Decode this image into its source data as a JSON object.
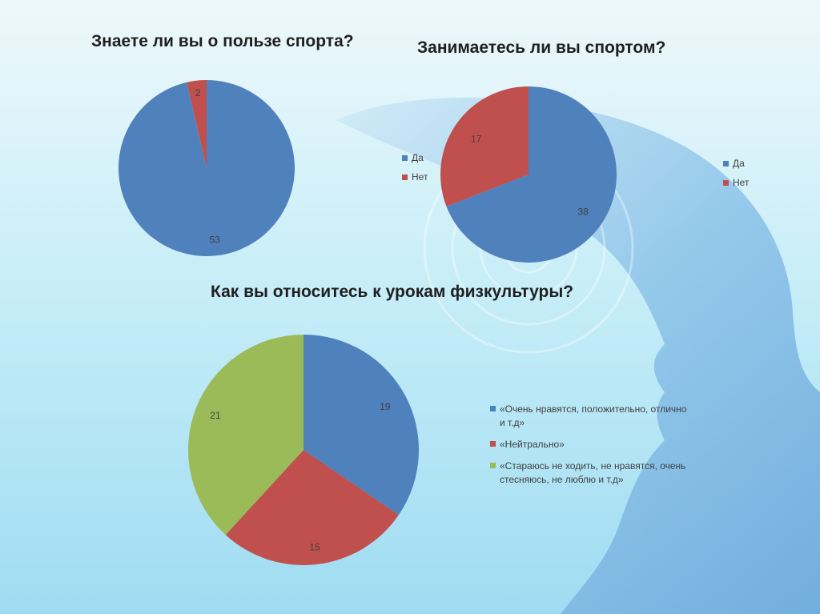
{
  "colors": {
    "blue": "#4f81bd",
    "red": "#c0504d",
    "green": "#9bbb59"
  },
  "chart_data": [
    {
      "type": "pie",
      "title": "Знаете ли вы о пользе спорта?",
      "categories": [
        "Да",
        "Нет"
      ],
      "values": [
        53,
        2
      ],
      "legend": "none"
    },
    {
      "type": "pie",
      "title": "Занимаетесь ли вы спортом?",
      "categories": [
        "Да",
        "Нет"
      ],
      "values": [
        38,
        17
      ],
      "legend": "right"
    },
    {
      "type": "pie",
      "title": "Как вы относитесь к урокам физкультуры?",
      "categories": [
        "«Очень нравятся, положительно, отлично и т.д»",
        "«Нейтрально»",
        "«Стараюсь не ходить, не нравятся, очень стесняюсь, не люблю и т.д»"
      ],
      "values": [
        19,
        15,
        21
      ],
      "legend": "right"
    }
  ],
  "legend_left": [
    "Да",
    "Нет"
  ]
}
